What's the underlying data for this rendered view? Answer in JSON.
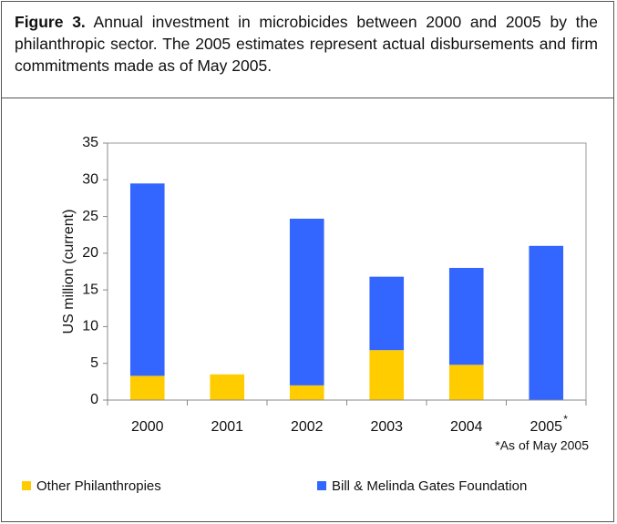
{
  "caption_label": "Figure 3.",
  "caption": "Annual investment in microbicides between 2000 and 2005 by the philanthropic sector. The 2005 estimates represent actual disbursements and firm commitments made as of May 2005.",
  "chart_data": {
    "type": "stacked_bar",
    "y_label": "US million (current)",
    "categories": [
      "2000",
      "2001",
      "2002",
      "2003",
      "2004",
      "2005"
    ],
    "category_marker": "*",
    "footnote": "*As of May 2005",
    "series": [
      {
        "name": "Other Philanthropies",
        "color": "#ffcc00",
        "values": [
          3.3,
          3.5,
          2.0,
          6.8,
          4.8,
          0
        ]
      },
      {
        "name": "Bill & Melinda Gates Foundation",
        "color": "#3366ff",
        "values": [
          26.2,
          0,
          22.7,
          10.0,
          13.2,
          21.0
        ]
      }
    ],
    "ylim": [
      0,
      35
    ],
    "yticks": [
      0,
      5,
      10,
      15,
      20,
      25,
      30,
      35
    ],
    "grid": false
  }
}
